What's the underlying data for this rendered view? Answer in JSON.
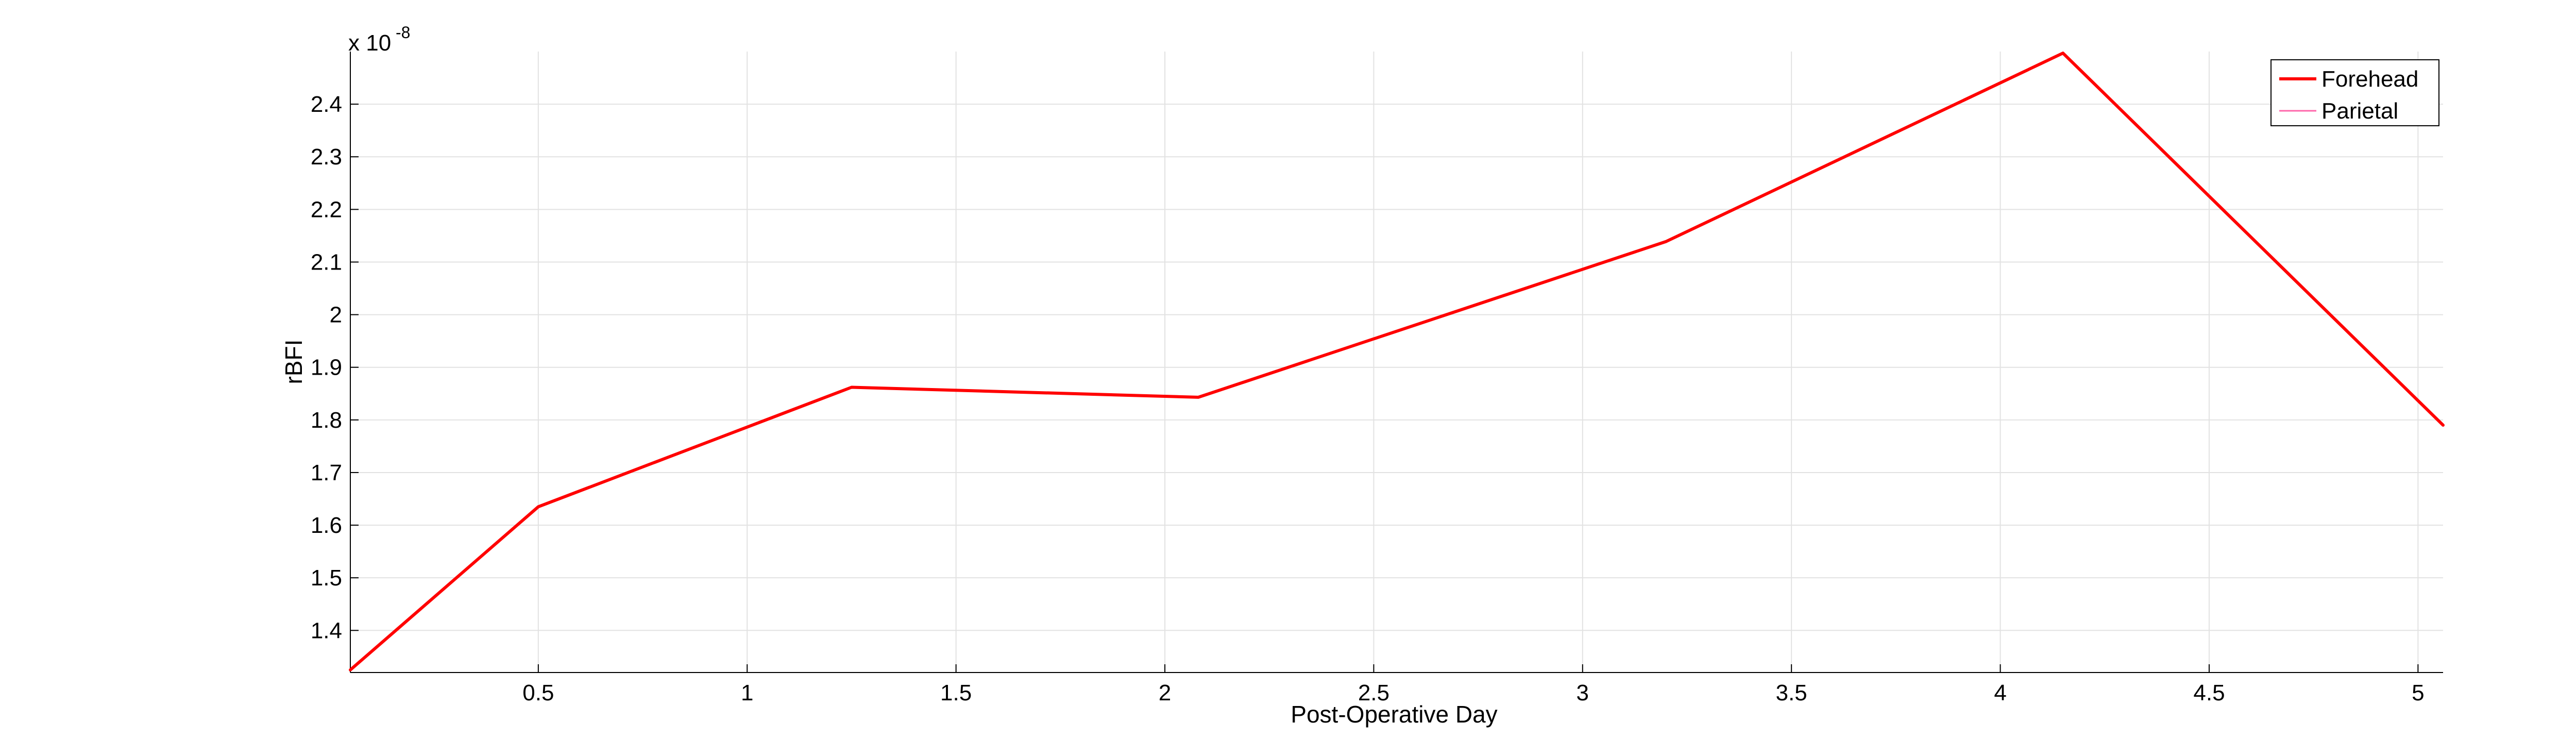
{
  "chart_data": {
    "type": "line",
    "xlabel": "Post-Operative Day",
    "ylabel": "rBFI",
    "y_exponent_base": "x 10",
    "y_exponent_power": "-8",
    "xlim": [
      0.05,
      5.06
    ],
    "ylim": [
      1.32,
      2.5
    ],
    "xticks": [
      0.5,
      1,
      1.5,
      2,
      2.5,
      3,
      3.5,
      4,
      4.5,
      5
    ],
    "xtick_labels": [
      "0.5",
      "1",
      "1.5",
      "2",
      "2.5",
      "3",
      "3.5",
      "4",
      "4.5",
      "5"
    ],
    "yticks": [
      1.4,
      1.5,
      1.6,
      1.7,
      1.8,
      1.9,
      2.0,
      2.1,
      2.2,
      2.3,
      2.4
    ],
    "ytick_labels": [
      "1.4",
      "1.5",
      "1.6",
      "1.7",
      "1.8",
      "1.9",
      "2",
      "2.1",
      "2.2",
      "2.3",
      "2.4"
    ],
    "grid": true,
    "legend_position": "top-right",
    "series": [
      {
        "name": "Forehead",
        "color": "#ff0000",
        "line_style": "thick",
        "x": [
          0.05,
          0.5,
          1.25,
          2.08,
          3.2,
          4.15,
          5.06
        ],
        "y": [
          1.325,
          1.635,
          1.862,
          1.843,
          2.139,
          2.497,
          1.79
        ]
      },
      {
        "name": "Parietal",
        "color": "#ff66aa",
        "line_style": "thin",
        "x": [],
        "y": []
      }
    ]
  }
}
